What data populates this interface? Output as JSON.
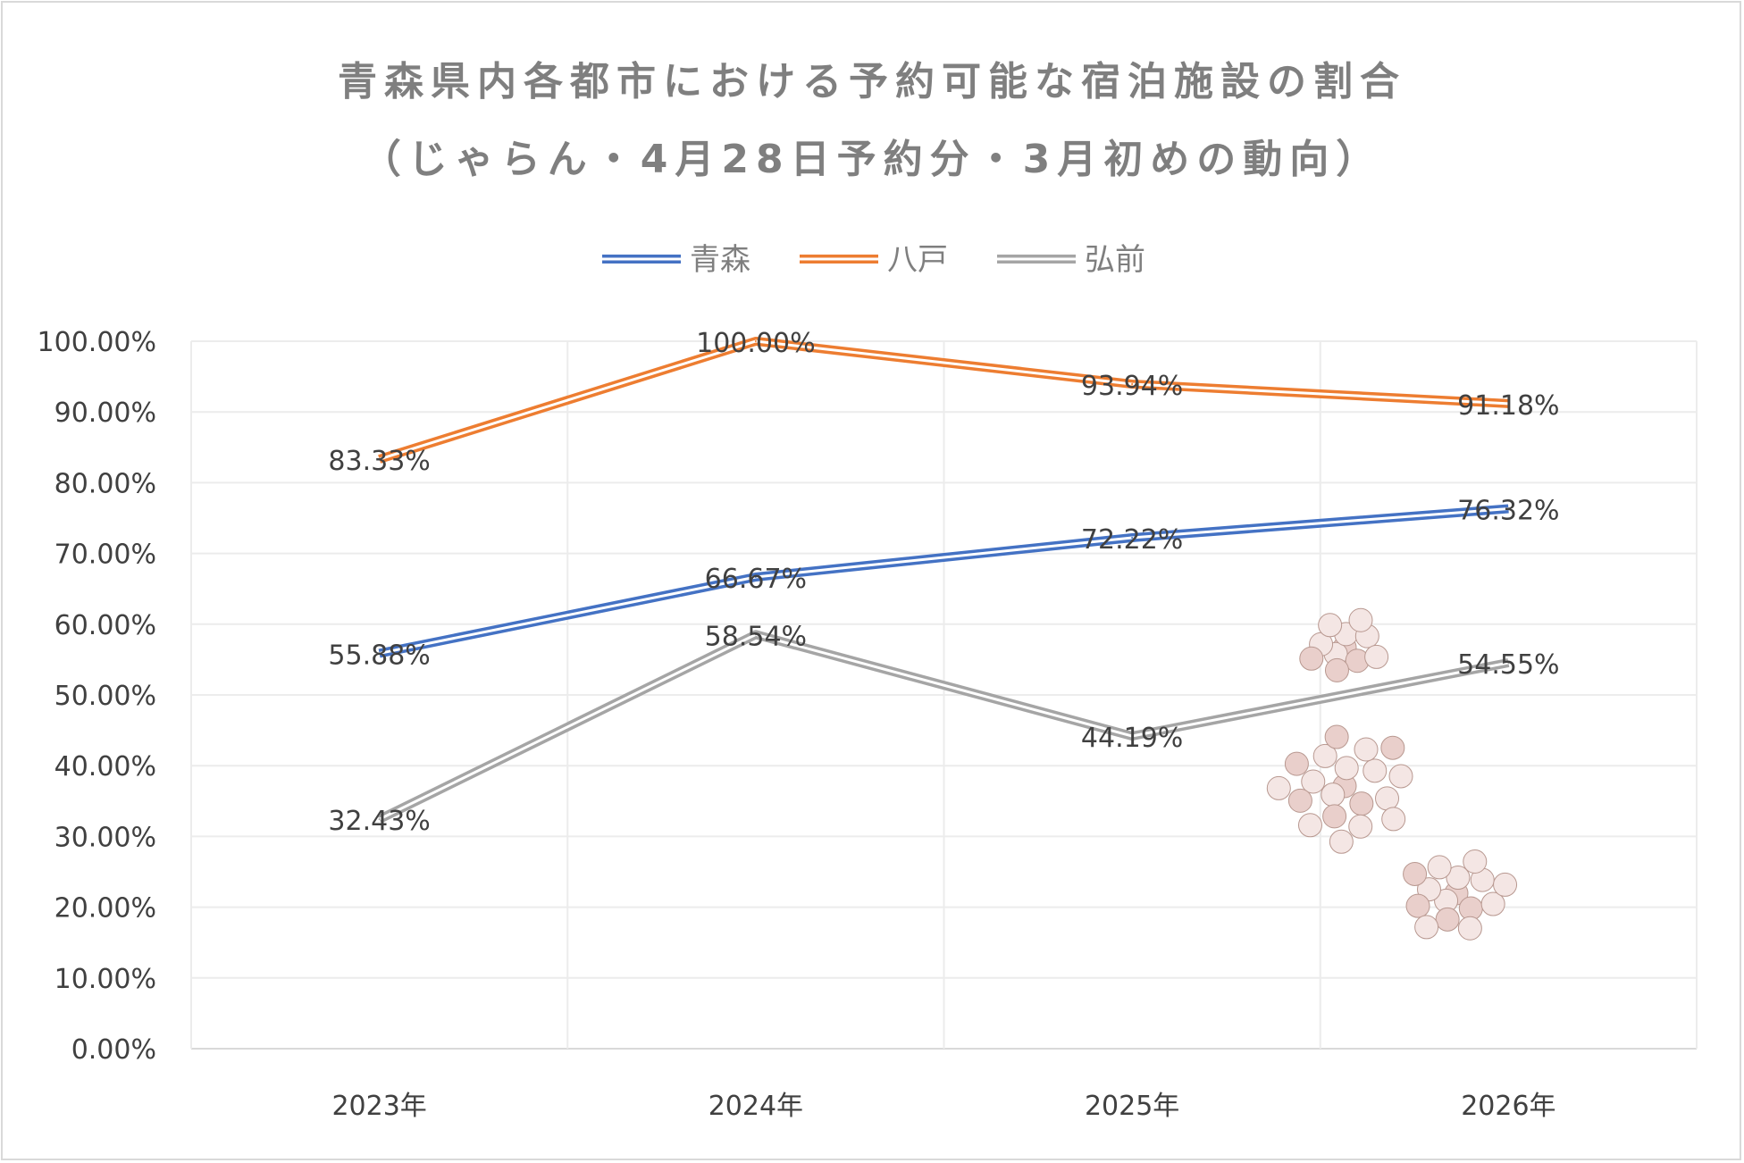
{
  "chart_data": {
    "type": "line",
    "title": "青森県内各都市における予約可能な宿泊施設の割合",
    "subtitle": "（じゃらん・4月28日予約分・3月初めの動向）",
    "categories": [
      "2023年",
      "2024年",
      "2025年",
      "2026年"
    ],
    "series": [
      {
        "name": "青森",
        "color": "#4472c4",
        "values": [
          55.88,
          66.67,
          72.22,
          76.32
        ],
        "labels": [
          "55.88%",
          "66.67%",
          "72.22%",
          "76.32%"
        ]
      },
      {
        "name": "八戸",
        "color": "#ed7d31",
        "values": [
          83.33,
          100.0,
          93.94,
          91.18
        ],
        "labels": [
          "83.33%",
          "100.00%",
          "93.94%",
          "91.18%"
        ]
      },
      {
        "name": "弘前",
        "color": "#a5a5a5",
        "values": [
          32.43,
          58.54,
          44.19,
          54.55
        ],
        "labels": [
          "32.43%",
          "58.54%",
          "44.19%",
          "54.55%"
        ]
      }
    ],
    "yticks": [
      "0.00%",
      "10.00%",
      "20.00%",
      "30.00%",
      "40.00%",
      "50.00%",
      "60.00%",
      "70.00%",
      "80.00%",
      "90.00%",
      "100.00%"
    ],
    "ylim": [
      0,
      100
    ],
    "xlabel": "",
    "ylabel": "",
    "grid": true,
    "legend": "top"
  }
}
